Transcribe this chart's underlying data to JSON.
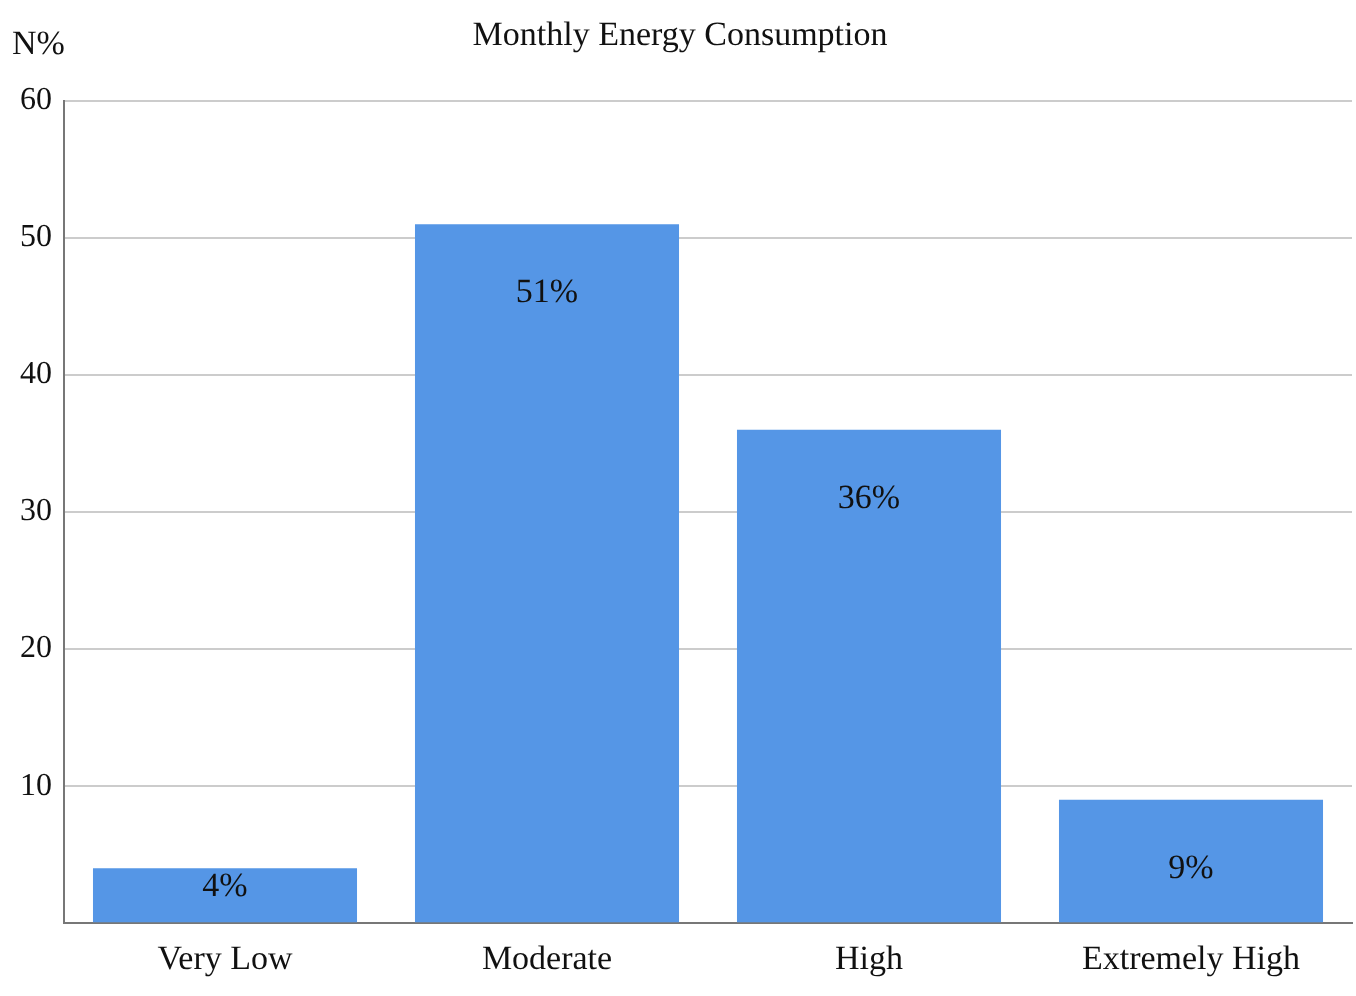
{
  "chart_data": {
    "type": "bar",
    "title": "Monthly Energy Consumption",
    "ylabel": "N%",
    "categories": [
      "Very Low",
      "Moderate",
      "High",
      "Extremely High"
    ],
    "values": [
      4,
      51,
      36,
      9
    ],
    "color": "#5596e6",
    "value_labels": [
      "4%",
      "51%",
      "36%",
      "9%"
    ],
    "ylim": [
      0,
      60
    ],
    "yticks": [
      {
        "value": 0,
        "label": null
      },
      10,
      20,
      30,
      40,
      50,
      60
    ],
    "grid": "y",
    "legend": false
  }
}
